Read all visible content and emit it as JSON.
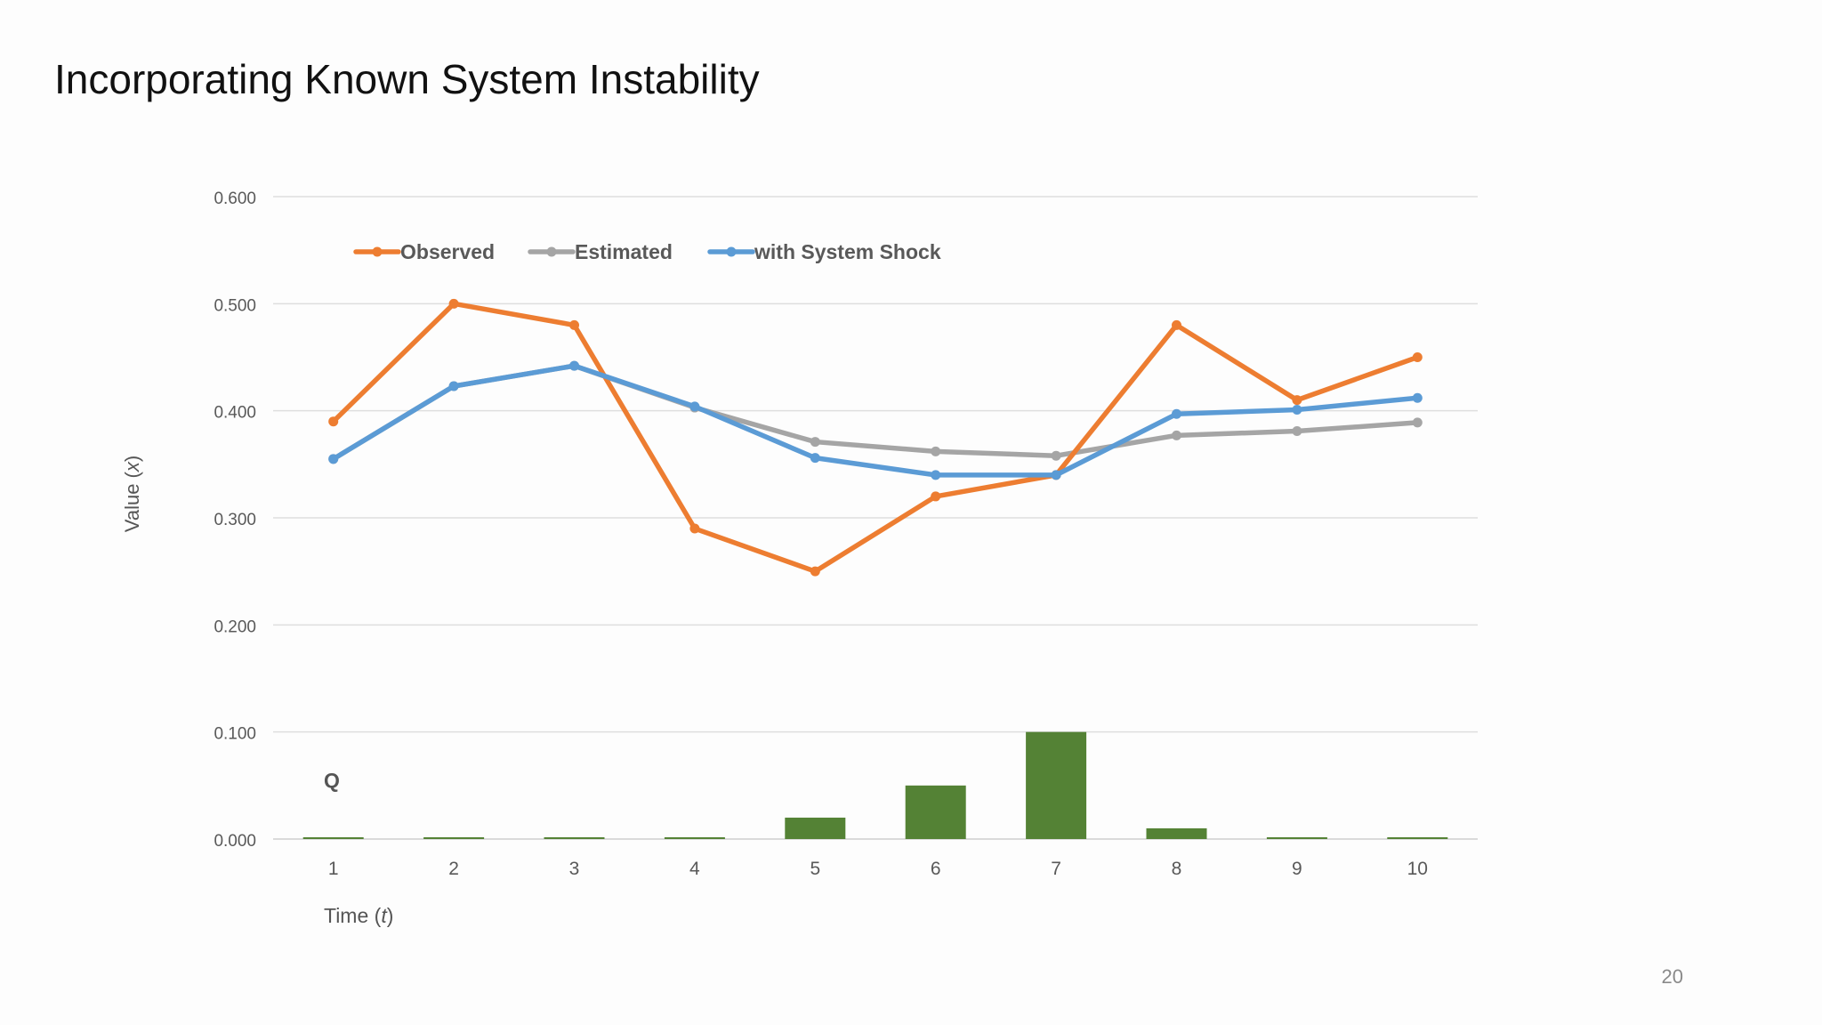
{
  "slide": {
    "title": "Incorporating Known System Instability",
    "page_number": "20"
  },
  "chart_data": {
    "type": "line",
    "title": "",
    "xlabel_text": "Time (",
    "xlabel_var": "t",
    "xlabel_end": ")",
    "ylabel_text": "Value (",
    "ylabel_var": "x",
    "ylabel_end": ")",
    "categories": [
      "1",
      "2",
      "3",
      "4",
      "5",
      "6",
      "7",
      "8",
      "9",
      "10"
    ],
    "ylim": [
      0,
      0.6
    ],
    "yticks": [
      "0.000",
      "0.100",
      "0.200",
      "0.300",
      "0.400",
      "0.500",
      "0.600"
    ],
    "grid": true,
    "legend_position": "top-left",
    "series": [
      {
        "name": "Observed",
        "color": "#ED7D31",
        "values": [
          0.39,
          0.5,
          0.48,
          0.29,
          0.25,
          0.32,
          0.34,
          0.48,
          0.41,
          0.45
        ]
      },
      {
        "name": "Estimated",
        "color": "#A5A5A5",
        "values": [
          0.355,
          0.423,
          0.442,
          0.403,
          0.371,
          0.362,
          0.358,
          0.377,
          0.381,
          0.389
        ]
      },
      {
        "name": "with System Shock",
        "color": "#5B9BD5",
        "values": [
          0.355,
          0.423,
          0.442,
          0.404,
          0.356,
          0.34,
          0.34,
          0.397,
          0.401,
          0.412
        ]
      }
    ],
    "bars": {
      "label": "Q",
      "color": "#548235",
      "values": [
        0.001,
        0.001,
        0.001,
        0.001,
        0.02,
        0.05,
        0.1,
        0.01,
        0.001,
        0.001
      ]
    }
  }
}
